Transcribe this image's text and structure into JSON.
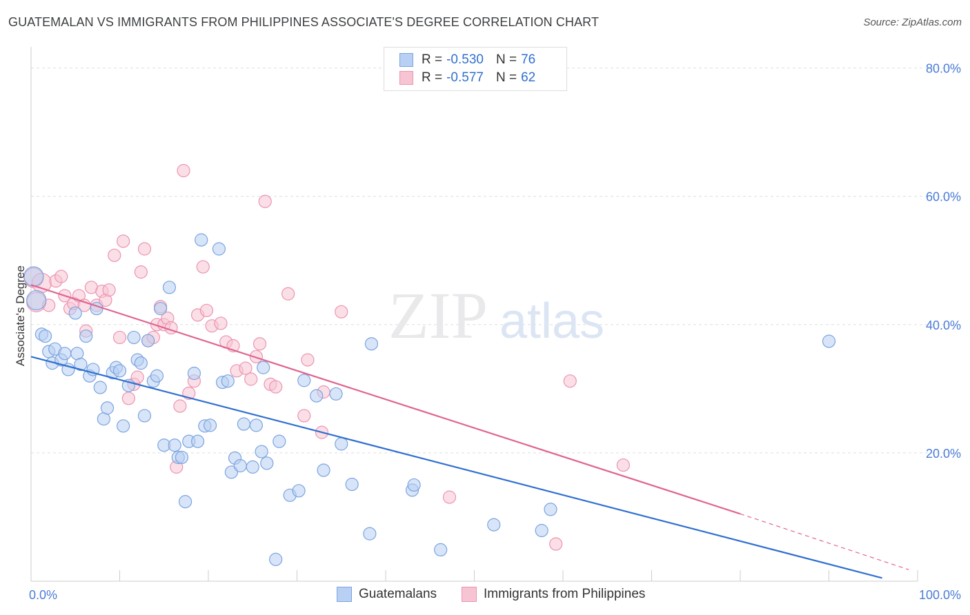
{
  "title": "GUATEMALAN VS IMMIGRANTS FROM PHILIPPINES ASSOCIATE'S DEGREE CORRELATION CHART",
  "source": "Source: ZipAtlas.com",
  "watermark": {
    "zip": "ZIP",
    "atlas": "atlas"
  },
  "legend": {
    "rows": [
      {
        "r_label": "R =",
        "r_value": "-0.530",
        "n_label": "N =",
        "n_value": "76"
      },
      {
        "r_label": "R =",
        "r_value": "-0.577",
        "n_label": "N =",
        "n_value": "62"
      }
    ]
  },
  "colors": {
    "blue_fill": "#b8d0f3",
    "blue_stroke": "#7aa3e0",
    "blue_line": "#2f6fd0",
    "pink_fill": "#f7c4d3",
    "pink_stroke": "#ec93b0",
    "pink_line": "#e0648f",
    "tick_label": "#4a7cd6",
    "grid": "#dddddd"
  },
  "chart_data": {
    "type": "scatter",
    "title": "GUATEMALAN VS IMMIGRANTS FROM PHILIPPINES ASSOCIATE'S DEGREE CORRELATION CHART",
    "xlabel": "",
    "ylabel": "Associate's Degree",
    "xlim": [
      0,
      100
    ],
    "ylim": [
      0,
      82
    ],
    "x_tick_labels": [
      "0.0%",
      "100.0%"
    ],
    "y_ticks": [
      20,
      40,
      60,
      80
    ],
    "y_tick_labels": [
      "20.0%",
      "40.0%",
      "60.0%",
      "80.0%"
    ],
    "grid": "horizontal dashed",
    "legend_position": "top-center",
    "series": [
      {
        "name": "Guatemalans",
        "color": "#7aa3e0",
        "trend": {
          "x": [
            0,
            96
          ],
          "y": [
            35.0,
            0.5
          ],
          "dashed_extension": false
        },
        "points": [
          [
            0.3,
            47.5
          ],
          [
            0.6,
            43.8
          ],
          [
            1.2,
            38.5
          ],
          [
            1.6,
            38.2
          ],
          [
            2.0,
            35.8
          ],
          [
            2.4,
            34.0
          ],
          [
            2.7,
            36.2
          ],
          [
            3.4,
            34.5
          ],
          [
            3.8,
            35.5
          ],
          [
            4.2,
            33.0
          ],
          [
            5.0,
            41.8
          ],
          [
            5.2,
            35.5
          ],
          [
            5.6,
            33.8
          ],
          [
            6.2,
            38.2
          ],
          [
            6.6,
            32.0
          ],
          [
            7.0,
            33.0
          ],
          [
            7.4,
            42.5
          ],
          [
            7.8,
            30.2
          ],
          [
            8.2,
            25.3
          ],
          [
            8.6,
            27.0
          ],
          [
            9.2,
            32.5
          ],
          [
            9.6,
            33.3
          ],
          [
            10.0,
            32.8
          ],
          [
            10.4,
            24.2
          ],
          [
            11.0,
            30.5
          ],
          [
            11.6,
            38.0
          ],
          [
            12.0,
            34.5
          ],
          [
            12.4,
            34.0
          ],
          [
            12.8,
            25.8
          ],
          [
            13.2,
            37.5
          ],
          [
            13.8,
            31.2
          ],
          [
            14.2,
            32.0
          ],
          [
            14.6,
            42.5
          ],
          [
            15.0,
            21.2
          ],
          [
            15.6,
            45.8
          ],
          [
            16.2,
            21.2
          ],
          [
            16.6,
            19.3
          ],
          [
            17.0,
            19.3
          ],
          [
            17.4,
            12.4
          ],
          [
            17.8,
            21.8
          ],
          [
            18.4,
            32.4
          ],
          [
            18.8,
            21.8
          ],
          [
            19.2,
            53.2
          ],
          [
            19.6,
            24.2
          ],
          [
            20.2,
            24.3
          ],
          [
            21.2,
            51.8
          ],
          [
            21.6,
            31.0
          ],
          [
            22.2,
            31.2
          ],
          [
            22.6,
            17.0
          ],
          [
            23.0,
            19.2
          ],
          [
            23.6,
            18.0
          ],
          [
            24.0,
            24.5
          ],
          [
            25.0,
            17.8
          ],
          [
            25.4,
            24.3
          ],
          [
            26.0,
            20.2
          ],
          [
            26.2,
            33.3
          ],
          [
            26.6,
            18.4
          ],
          [
            27.6,
            3.4
          ],
          [
            28.0,
            21.8
          ],
          [
            29.2,
            13.4
          ],
          [
            30.2,
            14.1
          ],
          [
            30.8,
            31.3
          ],
          [
            32.2,
            28.9
          ],
          [
            33.0,
            17.3
          ],
          [
            34.4,
            29.2
          ],
          [
            35.0,
            21.4
          ],
          [
            36.2,
            15.1
          ],
          [
            38.2,
            7.4
          ],
          [
            38.4,
            37.0
          ],
          [
            43.0,
            14.2
          ],
          [
            43.2,
            15.0
          ],
          [
            46.2,
            4.9
          ],
          [
            52.2,
            8.8
          ],
          [
            57.6,
            7.9
          ],
          [
            58.6,
            11.2
          ],
          [
            90.0,
            37.4
          ]
        ]
      },
      {
        "name": "Immigrants from Philippines",
        "color": "#ec93b0",
        "trend": {
          "x": [
            0,
            80
          ],
          "y": [
            46.2,
            10.5
          ],
          "dashed_extension": {
            "x": [
              80,
              99
            ],
            "y": [
              10.5,
              1.8
            ]
          }
        },
        "points": [
          [
            0.3,
            47.3
          ],
          [
            0.6,
            43.5
          ],
          [
            1.2,
            46.5
          ],
          [
            2.0,
            43.0
          ],
          [
            2.8,
            46.8
          ],
          [
            3.4,
            47.5
          ],
          [
            3.8,
            44.5
          ],
          [
            4.4,
            42.5
          ],
          [
            4.8,
            43.3
          ],
          [
            5.4,
            44.5
          ],
          [
            6.0,
            43.0
          ],
          [
            6.2,
            39.0
          ],
          [
            6.8,
            45.8
          ],
          [
            7.4,
            43.0
          ],
          [
            8.0,
            45.2
          ],
          [
            8.4,
            43.8
          ],
          [
            8.8,
            45.4
          ],
          [
            9.4,
            50.8
          ],
          [
            10.0,
            38.0
          ],
          [
            10.4,
            53.0
          ],
          [
            11.0,
            28.5
          ],
          [
            11.6,
            30.7
          ],
          [
            12.0,
            31.8
          ],
          [
            12.4,
            48.2
          ],
          [
            12.8,
            51.8
          ],
          [
            13.2,
            37.5
          ],
          [
            13.8,
            38.0
          ],
          [
            14.2,
            40.0
          ],
          [
            14.6,
            42.8
          ],
          [
            15.0,
            40.0
          ],
          [
            15.4,
            41.0
          ],
          [
            15.8,
            39.5
          ],
          [
            16.4,
            17.8
          ],
          [
            16.8,
            27.3
          ],
          [
            17.2,
            64.0
          ],
          [
            17.8,
            29.3
          ],
          [
            18.4,
            31.2
          ],
          [
            18.8,
            41.5
          ],
          [
            19.4,
            49.0
          ],
          [
            19.8,
            42.2
          ],
          [
            20.4,
            39.8
          ],
          [
            21.4,
            40.2
          ],
          [
            22.0,
            37.3
          ],
          [
            22.8,
            36.7
          ],
          [
            23.2,
            32.8
          ],
          [
            24.2,
            33.2
          ],
          [
            24.8,
            31.5
          ],
          [
            25.4,
            35.0
          ],
          [
            25.8,
            37.0
          ],
          [
            26.4,
            59.2
          ],
          [
            27.0,
            30.7
          ],
          [
            27.6,
            30.3
          ],
          [
            29.0,
            44.8
          ],
          [
            30.8,
            25.8
          ],
          [
            31.2,
            34.5
          ],
          [
            32.8,
            23.2
          ],
          [
            33.0,
            29.5
          ],
          [
            35.0,
            42.0
          ],
          [
            47.2,
            13.1
          ],
          [
            59.2,
            5.8
          ],
          [
            60.8,
            31.2
          ],
          [
            66.8,
            18.1
          ]
        ]
      }
    ]
  }
}
